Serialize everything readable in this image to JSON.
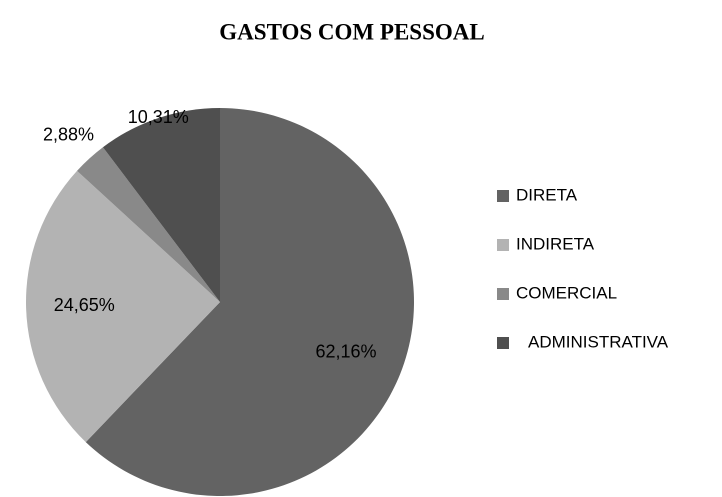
{
  "chart_data": {
    "type": "pie",
    "title": "GASTOS COM PESSOAL",
    "categories": [
      "DIRETA",
      "INDIRETA",
      "COMERCIAL",
      "ADMINISTRATIVA"
    ],
    "values": [
      62.16,
      24.65,
      2.88,
      10.31
    ],
    "value_labels": [
      "62,16%",
      "24,65%",
      "2,88%",
      "10,31%"
    ],
    "colors": [
      "#636363",
      "#b3b3b3",
      "#898989",
      "#4f4f4f"
    ],
    "legend": "right"
  }
}
